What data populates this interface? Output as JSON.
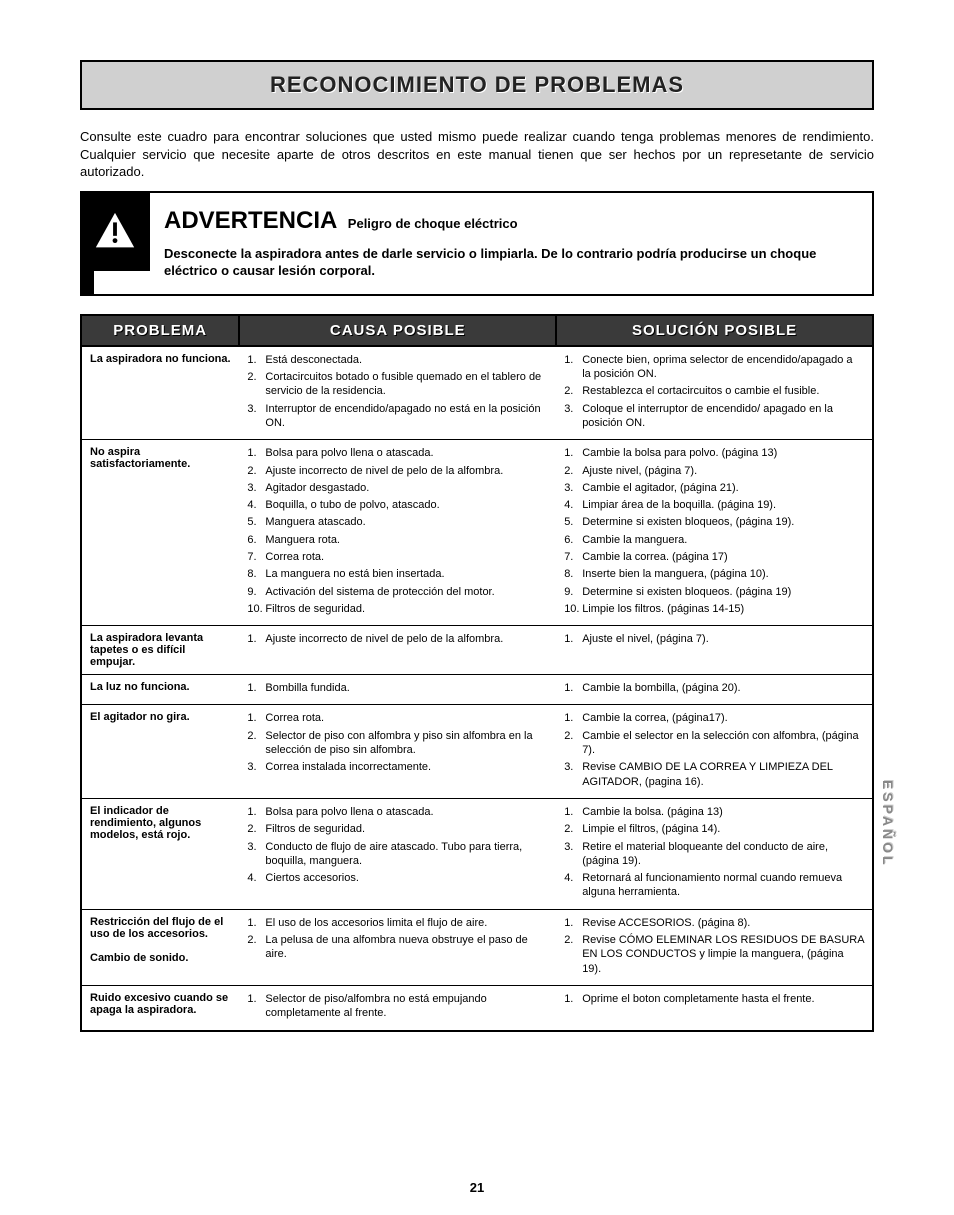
{
  "title": "RECONOCIMIENTO DE PROBLEMAS",
  "intro": "Consulte este cuadro para encontrar soluciones que usted mismo puede realizar cuando tenga problemas menores de rendimiento. Cualquier servicio que necesite aparte de otros descritos en este manual tienen que ser hechos por un represetante de servicio autorizado.",
  "warning": {
    "title": "ADVERTENCIA",
    "subtitle": "Peligro de choque eléctrico",
    "body": "Desconecte la aspiradora antes de darle servicio o limpiarla. De lo contrario podría producirse un choque eléctrico o causar lesión corporal."
  },
  "headers": {
    "problem": "PROBLEMA",
    "cause": "CAUSA POSIBLE",
    "solution": "SOLUCIÓN POSIBLE"
  },
  "rows": [
    {
      "problem": "La aspiradora no funciona.",
      "causes": [
        "Está desconectada.",
        "Cortacircuitos botado o fusible quemado en el tablero de servicio de la residencia.",
        "Interruptor de encendido/apagado no está en la posición ON."
      ],
      "solutions": [
        "Conecte bien, oprima selector de encendido/apagado a la posición ON.",
        "Restablezca el cortacircuitos o cambie el fusible.",
        "Coloque el interruptor de encendido/ apagado en la posición ON."
      ]
    },
    {
      "problem": "No aspira satisfactoriamente.",
      "causes": [
        "Bolsa para polvo llena o atascada.",
        "Ajuste incorrecto de nivel de pelo de la alfombra.",
        "Agitador desgastado.",
        "Boquilla, o tubo de polvo, atascado.",
        "Manguera atascado.",
        "Manguera rota.",
        "Correa rota.",
        "La manguera no está bien insertada.",
        "Activación del sistema de protección del motor.",
        "Filtros de seguridad."
      ],
      "solutions": [
        "Cambie la bolsa para polvo. (página 13)",
        "Ajuste nivel, (página 7).",
        "Cambie el agitador, (página 21).",
        "Limpiar área de la boquilla. (página 19).",
        "Determine si existen bloqueos, (página 19).",
        "Cambie la manguera.",
        "Cambie la correa. (página 17)",
        "Inserte bien la manguera, (página 10).",
        "Determine si existen bloqueos. (página 19)",
        "Limpie los filtros. (páginas 14-15)"
      ]
    },
    {
      "problem": "La aspiradora levanta tapetes o es difícil empujar.",
      "causes": [
        "Ajuste incorrecto de nivel de pelo de la alfombra."
      ],
      "solutions": [
        "Ajuste el nivel, (página 7)."
      ]
    },
    {
      "problem": "La luz no funciona.",
      "causes": [
        "Bombilla fundida."
      ],
      "solutions": [
        "Cambie la bombilla, (página 20)."
      ]
    },
    {
      "problem": "El agitador no gira.",
      "causes": [
        "Correa rota.",
        "Selector de piso con alfombra y piso sin alfombra en la selección de piso sin alfombra.",
        "Correa instalada incorrectamente."
      ],
      "solutions": [
        "Cambie la correa, (página17).",
        "Cambie el selector en la selección con alfombra, (página 7).",
        "Revise CAMBIO DE LA CORREA Y LIMPIEZA DEL AGITADOR, (pagina 16)."
      ]
    },
    {
      "problem": "El indicador de rendimiento, algunos modelos, está rojo.",
      "causes": [
        "Bolsa para polvo llena o atascada.",
        "Filtros de seguridad.",
        "Conducto de flujo de aire atascado. Tubo para tierra, boquilla, manguera.",
        "Ciertos accesorios."
      ],
      "solutions": [
        "Cambie la bolsa. (página 13)",
        "Limpie el filtros, (página 14).",
        "Retire el material bloqueante del conducto de aire, (página 19).",
        "Retornará al funcionamiento normal cuando remueva alguna herramienta."
      ]
    },
    {
      "problem": "Restricción del flujo de el uso de los accesorios.\n\nCambio de sonido.",
      "causes": [
        "El uso de los accesorios limita el flujo de aire.",
        "La pelusa de una alfombra nueva obstruye el paso de aire."
      ],
      "solutions": [
        "Revise ACCESORIOS. (página 8).",
        "Revise CÓMO ELEMINAR LOS RESIDUOS DE BASURA EN LOS CONDUCTOS y limpie la manguera, (página 19)."
      ]
    },
    {
      "problem": "Ruido excesivo cuando se apaga la aspiradora.",
      "causes": [
        "Selector de piso/alfombra no está empujando completamente al frente."
      ],
      "solutions": [
        "Oprime el boton completamente hasta el frente."
      ]
    }
  ],
  "page_number": "21",
  "side_tab": "ESPAÑOL"
}
